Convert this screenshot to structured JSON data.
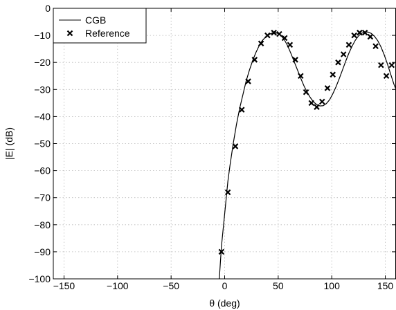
{
  "chart_data": {
    "type": "line",
    "xlabel": "θ (deg)",
    "ylabel": "|E| (dB)",
    "xlim": [
      -160,
      160
    ],
    "ylim": [
      -100,
      0
    ],
    "xticks": [
      -150,
      -100,
      -50,
      0,
      50,
      100,
      150
    ],
    "yticks": [
      0,
      -10,
      -20,
      -30,
      -40,
      -50,
      -60,
      -70,
      -80,
      -90,
      -100
    ],
    "grid": true,
    "legend_position": "top-left",
    "series": [
      {
        "name": "CGB",
        "style": "solid-line",
        "color": "#000000",
        "x": [
          -5,
          -3,
          -1,
          1,
          3,
          5,
          8,
          11,
          14,
          17,
          20,
          23,
          26,
          29,
          32,
          35,
          38,
          41,
          44,
          47,
          50,
          53,
          56,
          59,
          62,
          65,
          68,
          71,
          74,
          77,
          80,
          83,
          86,
          89,
          92,
          95,
          98,
          101,
          104,
          107,
          110,
          113,
          116,
          119,
          122,
          125,
          128,
          131,
          134,
          137,
          140,
          143,
          146,
          149,
          152,
          155,
          158,
          160
        ],
        "y": [
          -100,
          -88,
          -80,
          -72,
          -64,
          -58,
          -50,
          -43,
          -37,
          -32,
          -27,
          -23,
          -19.5,
          -16.5,
          -14,
          -12,
          -10.7,
          -9.8,
          -9.2,
          -9,
          -9.3,
          -10.2,
          -11.8,
          -14,
          -16.8,
          -19.8,
          -22.8,
          -25.8,
          -28.6,
          -31,
          -33,
          -34.6,
          -35.6,
          -36.1,
          -36,
          -35.2,
          -33.8,
          -31.6,
          -29,
          -26,
          -22.8,
          -19.6,
          -16.6,
          -14,
          -11.8,
          -10.2,
          -9.2,
          -8.8,
          -8.8,
          -9.3,
          -10.4,
          -12,
          -14.3,
          -17.2,
          -20.6,
          -24.3,
          -28,
          -30
        ]
      },
      {
        "name": "Reference",
        "style": "x-marker",
        "color": "#000000",
        "x": [
          -3,
          3,
          10,
          16,
          22,
          28,
          34,
          40,
          46,
          51,
          56,
          61,
          66,
          71,
          76,
          81,
          86,
          91,
          96,
          101,
          106,
          111,
          116,
          121,
          126,
          131,
          136,
          141,
          146,
          151,
          156
        ],
        "y": [
          -90,
          -68,
          -51,
          -37.5,
          -27,
          -19,
          -13,
          -10,
          -9,
          -9.5,
          -11,
          -13.5,
          -19,
          -25,
          -31,
          -35,
          -36.5,
          -34.5,
          -29.5,
          -24.5,
          -20,
          -17,
          -13.5,
          -10,
          -9,
          -9,
          -10.5,
          -14,
          -21,
          -25,
          -21
        ]
      }
    ]
  }
}
